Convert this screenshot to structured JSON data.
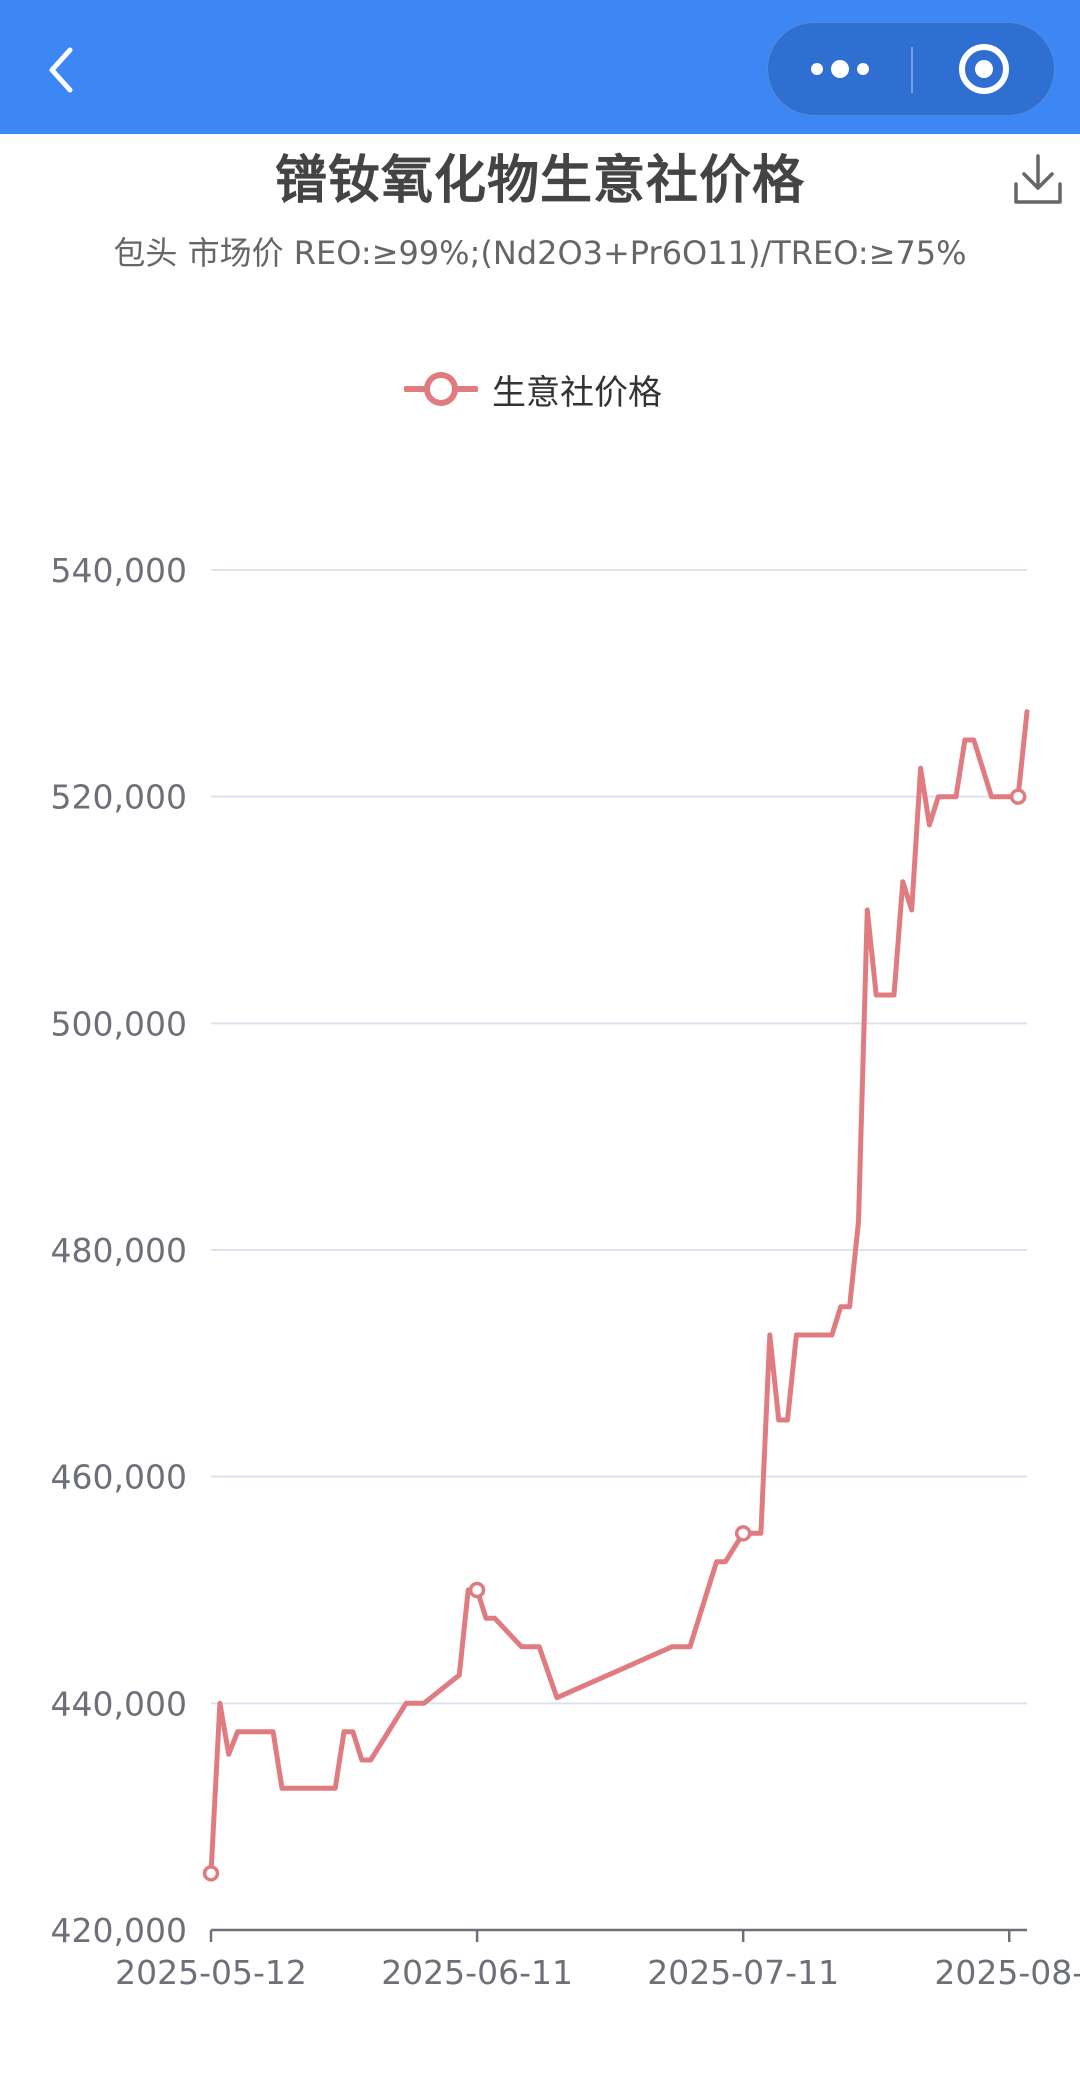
{
  "header": {
    "back_icon": "chevron-left-icon",
    "more_icon": "more-dots-icon",
    "close_icon": "target-circle-icon",
    "download_icon": "download-icon"
  },
  "colors": {
    "topbar": "#3d87f5",
    "series": "#e07b80",
    "grid": "#dde3ee",
    "axis": "#6e7079"
  },
  "chart_data": {
    "type": "line",
    "title": "镨钕氧化物生意社价格",
    "subtitle": "包头 市场价 REO:≥99%;(Nd2O3+Pr6O11)/TREO:≥75%",
    "legend": {
      "label": "生意社价格",
      "position": "top-center"
    },
    "xlabel": "",
    "ylabel": "",
    "y_ticks": [
      "540,000",
      "520,000",
      "500,000",
      "480,000",
      "460,000",
      "440,000",
      "420,000"
    ],
    "y_tick_values": [
      540000,
      520000,
      500000,
      480000,
      460000,
      440000,
      420000
    ],
    "ylim": [
      420000,
      540000
    ],
    "x_ticks": [
      "2025-05-12",
      "2025-06-11",
      "2025-07-11",
      "2025-08-"
    ],
    "xlim": [
      "2025-05-12",
      "2025-08-12"
    ],
    "grid": true,
    "series": [
      {
        "name": "生意社价格",
        "x": [
          "2025-05-12",
          "2025-05-13",
          "2025-05-14",
          "2025-05-15",
          "2025-05-19",
          "2025-05-20",
          "2025-05-26",
          "2025-05-27",
          "2025-05-28",
          "2025-05-29",
          "2025-05-30",
          "2025-06-03",
          "2025-06-04",
          "2025-06-05",
          "2025-06-09",
          "2025-06-10",
          "2025-06-11",
          "2025-06-12",
          "2025-06-13",
          "2025-06-16",
          "2025-06-18",
          "2025-06-20",
          "2025-07-03",
          "2025-07-04",
          "2025-07-05",
          "2025-07-07",
          "2025-07-08",
          "2025-07-09",
          "2025-07-11",
          "2025-07-13",
          "2025-07-14",
          "2025-07-15",
          "2025-07-16",
          "2025-07-17",
          "2025-07-18",
          "2025-07-21",
          "2025-07-22",
          "2025-07-23",
          "2025-07-24",
          "2025-07-25",
          "2025-07-26",
          "2025-07-28",
          "2025-07-29",
          "2025-07-30",
          "2025-07-31",
          "2025-08-01",
          "2025-08-02",
          "2025-08-04",
          "2025-08-05",
          "2025-08-06",
          "2025-08-08",
          "2025-08-11",
          "2025-08-12"
        ],
        "values": [
          425000,
          440000,
          435500,
          437500,
          437500,
          432500,
          432500,
          437500,
          437500,
          435000,
          435000,
          440000,
          440000,
          440000,
          442500,
          450000,
          450000,
          447500,
          447500,
          445000,
          445000,
          440500,
          445000,
          445000,
          445000,
          450000,
          452500,
          452500,
          455000,
          455000,
          472500,
          465000,
          465000,
          472500,
          472500,
          472500,
          475000,
          475000,
          482500,
          510000,
          502500,
          502500,
          512500,
          510000,
          522500,
          517500,
          520000,
          520000,
          525000,
          525000,
          520000,
          520000,
          527500
        ]
      }
    ],
    "markers_at": [
      "2025-05-12",
      "2025-06-11",
      "2025-07-11",
      "2025-08-11"
    ]
  }
}
